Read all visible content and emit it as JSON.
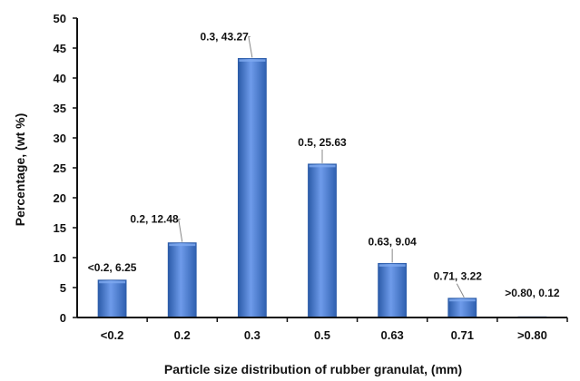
{
  "chart_data": {
    "type": "bar",
    "title": "",
    "xlabel": "Particle size distribution of rubber granulat, (mm)",
    "ylabel": "Percentage, (wt %)",
    "ylim": [
      0,
      50
    ],
    "yticks": [
      0,
      5,
      10,
      15,
      20,
      25,
      30,
      35,
      40,
      45,
      50
    ],
    "categories": [
      "<0.2",
      "0.2",
      "0.3",
      "0.5",
      "0.63",
      "0.71",
      ">0.80"
    ],
    "values": [
      6.25,
      12.48,
      43.27,
      25.63,
      9.04,
      3.22,
      0.12
    ],
    "data_labels": [
      "<0.2, 6.25",
      "0.2, 12.48",
      "0.3, 43.27",
      "0.5, 25.63",
      "0.63, 9.04",
      "0.71, 3.22",
      ">0.80, 0.12"
    ],
    "grid": false,
    "legend": "none",
    "colors": {
      "bar": "#4A7FD4",
      "bar_dark": "#2B5BA8",
      "bar_light": "#7FAAF0",
      "axis": "#111111",
      "leader": "#888888"
    }
  }
}
